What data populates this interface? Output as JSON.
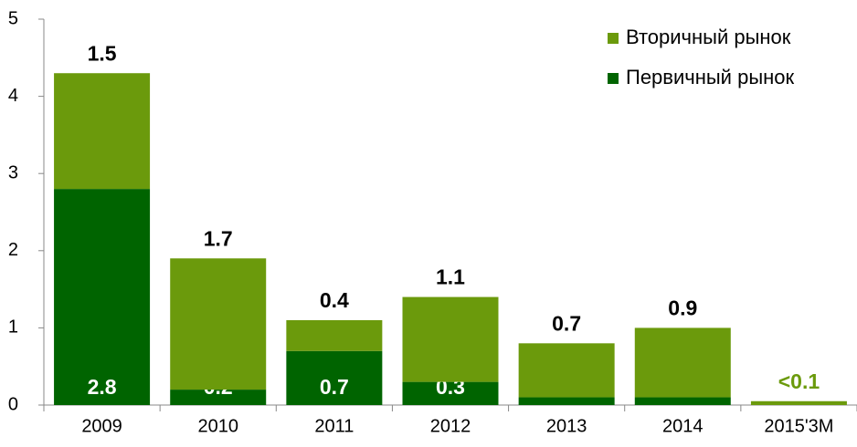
{
  "chart_data": {
    "type": "stacked_bar",
    "categories": [
      "2009",
      "2010",
      "2011",
      "2012",
      "2013",
      "2014",
      "2015'3M"
    ],
    "series": [
      {
        "name": "Первичный рынок",
        "color": "#006400",
        "values": [
          2.8,
          0.2,
          0.7,
          0.3,
          0.1,
          0.1,
          null
        ]
      },
      {
        "name": "Вторичный рынок",
        "color": "#6b9a0c",
        "values": [
          1.5,
          1.7,
          0.4,
          1.1,
          0.7,
          0.9,
          0.05
        ],
        "value_labels": [
          "1.5",
          "1.7",
          "0.4",
          "1.1",
          "0.7",
          "0.9",
          "<0.1"
        ]
      }
    ],
    "ylim": [
      0,
      5
    ],
    "yticks": [
      0,
      1,
      2,
      3,
      4,
      5
    ],
    "legend": "upper right"
  }
}
